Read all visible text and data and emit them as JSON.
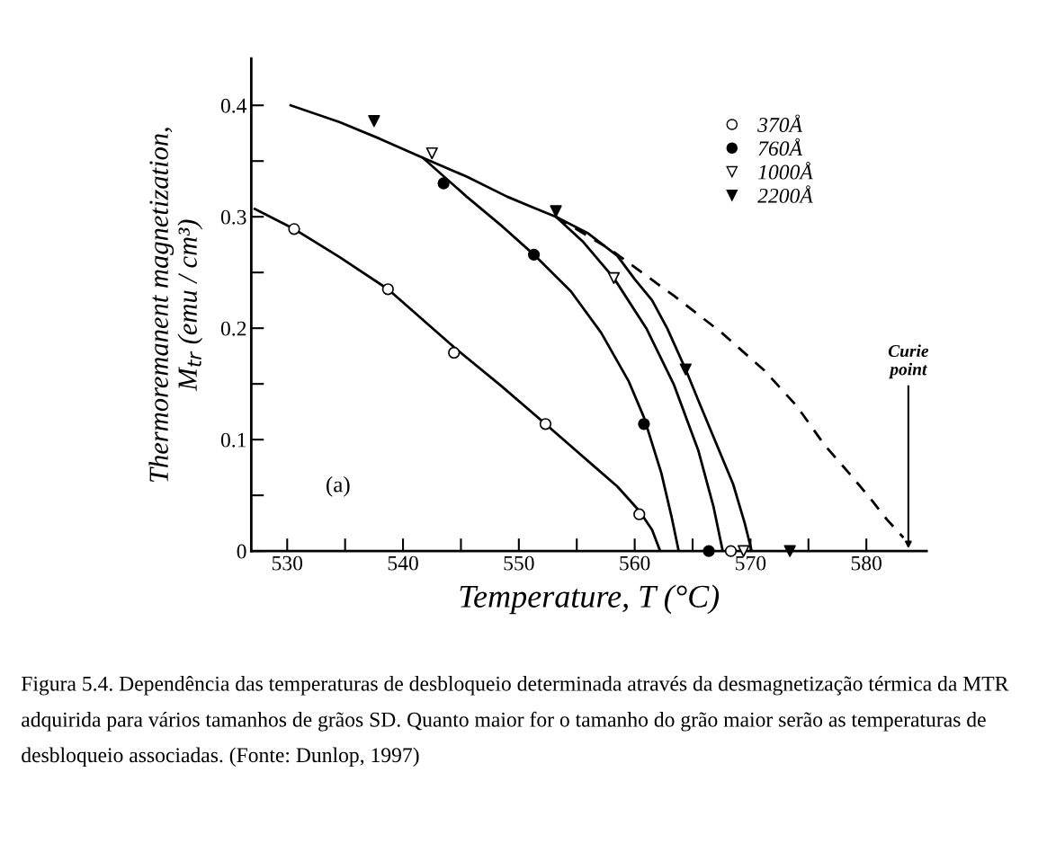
{
  "chart_data": {
    "type": "scatter",
    "xlabel": "Temperature, T (°C)",
    "ylabel": "Thermoremanent magnetization,\nM$_{tr}$ (emu / cm³)",
    "xlim": [
      526.9,
      585.2
    ],
    "ylim": [
      0,
      0.442
    ],
    "xticks": [
      530,
      {
        "value": 535,
        "label": null
      },
      540,
      {
        "value": 545,
        "label": null
      },
      550,
      {
        "value": 555,
        "label": null
      },
      560,
      {
        "value": 565,
        "label": null
      },
      570,
      {
        "value": 575,
        "label": null
      },
      580
    ],
    "yticks": [
      0,
      {
        "value": 0.05,
        "label": null
      },
      0.1,
      {
        "value": 0.15,
        "label": null
      },
      0.2,
      {
        "value": 0.25,
        "label": null
      },
      0.3,
      {
        "value": 0.35,
        "label": null
      },
      0.4
    ],
    "grid": false,
    "legend": "top right",
    "series": [
      {
        "name": "370Å",
        "marker": "circle",
        "color": "#ffffff",
        "x": [
          530.6,
          538.7,
          544.4,
          552.3,
          560.4,
          568.3
        ],
        "values": [
          0.289,
          0.235,
          0.178,
          0.114,
          0.033,
          0
        ]
      },
      {
        "name": "760Å",
        "marker": "circle",
        "color": "#000000",
        "x": [
          543.5,
          551.3,
          560.8,
          566.4
        ],
        "values": [
          0.33,
          0.266,
          0.114,
          0
        ]
      },
      {
        "name": "1000Å",
        "marker": "triangle",
        "color": "#ffffff",
        "x": [
          542.5,
          558.2,
          569.4
        ],
        "values": [
          0.357,
          0.245,
          0
        ]
      },
      {
        "name": "2200Å",
        "marker": "triangle",
        "color": "#000000",
        "x": [
          537.5,
          553.2,
          564.4,
          573.4
        ],
        "values": [
          0.386,
          0.305,
          0.163,
          0
        ]
      },
      {
        "type": "line",
        "color": "#000000",
        "line_style": "solid",
        "x": [
          527.2,
          530.6,
          534.5,
          538.7,
          544.4,
          548.5,
          552.3,
          556.5,
          558.5,
          560.4,
          561.5,
          562.2
        ],
        "values": [
          0.307,
          0.289,
          0.264,
          0.235,
          0.183,
          0.148,
          0.114,
          0.076,
          0.058,
          0.036,
          0.019,
          0
        ]
      },
      {
        "type": "line",
        "color": "#000000",
        "line_style": "solid",
        "x": [
          530.3,
          534.5,
          538.0,
          541.7,
          545.5,
          549.0,
          551.3,
          553.2
        ],
        "values": [
          0.4,
          0.385,
          0.37,
          0.353,
          0.336,
          0.318,
          0.308,
          0.3
        ]
      },
      {
        "type": "line",
        "color": "#000000",
        "line_style": "solid",
        "x": [
          541.7,
          545.5,
          548.5,
          551.3,
          554.5,
          557.1,
          559.5,
          560.8,
          562.3,
          563.2,
          563.8
        ],
        "values": [
          0.353,
          0.318,
          0.292,
          0.266,
          0.233,
          0.196,
          0.152,
          0.12,
          0.07,
          0.03,
          0
        ]
      },
      {
        "type": "line",
        "color": "#000000",
        "line_style": "solid",
        "x": [
          553.2,
          555.5,
          558.2,
          561.0,
          563.4,
          565.5,
          566.8,
          567.6
        ],
        "values": [
          0.3,
          0.278,
          0.245,
          0.2,
          0.149,
          0.09,
          0.04,
          0
        ]
      },
      {
        "type": "line",
        "color": "#000000",
        "line_style": "solid",
        "x": [
          553.2,
          556.0,
          558.5,
          560.0,
          561.5,
          562.8,
          564.4,
          565.5,
          566.5,
          567.5,
          568.5,
          569.5,
          570.1
        ],
        "values": [
          0.3,
          0.285,
          0.265,
          0.244,
          0.225,
          0.2,
          0.163,
          0.135,
          0.11,
          0.085,
          0.06,
          0.025,
          0
        ]
      },
      {
        "type": "line",
        "color": "#000000",
        "line_style": "dashed",
        "x": [
          553.2,
          558.0,
          563.4,
          567.5,
          571.2,
          574.0,
          576.4,
          578.5,
          580.2,
          581.8,
          583.2
        ],
        "values": [
          0.3,
          0.27,
          0.229,
          0.196,
          0.162,
          0.13,
          0.095,
          0.07,
          0.049,
          0.028,
          0.012
        ]
      }
    ],
    "annotations": [
      "Curie\npoint",
      "(a)",
      "Figura 5.4. Dependência das temperaturas de desbloqueio determinada através da desmagnetização térmica da MTR adquirida para vários tamanhos de grãos SD. Quanto maior for o tamanho do grão maior serão as temperaturas de desbloqueio associadas. (Fonte: Dunlop, 1997)"
    ]
  }
}
